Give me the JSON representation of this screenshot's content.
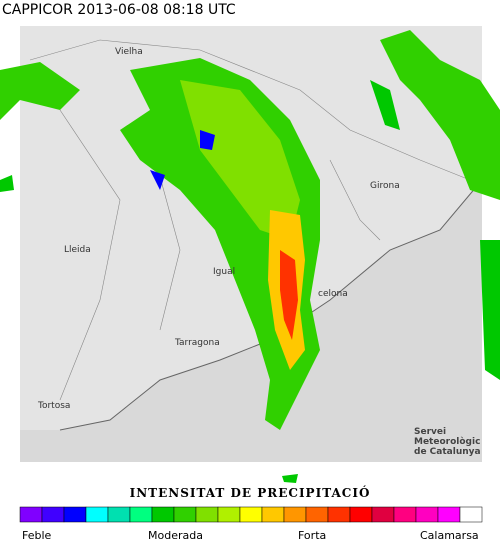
{
  "header": {
    "title": "CAPPICOR 2013-06-08 08:18 UTC"
  },
  "map": {
    "places": [
      "Vielha",
      "Lleida",
      "Girona",
      "Igual",
      "celona",
      "Tarragona",
      "Tortosa"
    ],
    "credit": [
      "Servei",
      "Meteorològic",
      "de Catalunya"
    ]
  },
  "legend": {
    "title": "INTENSITAT DE PRECIPITACIÓ",
    "colors": [
      "#8000ff",
      "#4000ff",
      "#0000ff",
      "#00ffff",
      "#00e0b0",
      "#00ff80",
      "#00c800",
      "#30d000",
      "#80e000",
      "#b0f000",
      "#ffff00",
      "#ffc800",
      "#ff9600",
      "#ff6400",
      "#ff3200",
      "#ff0000",
      "#e00040",
      "#ff0080",
      "#ff00c0",
      "#ff00ff",
      "#ffffff"
    ],
    "labels": [
      "Feble",
      "Moderada",
      "Forta",
      "Calamarsa"
    ]
  }
}
